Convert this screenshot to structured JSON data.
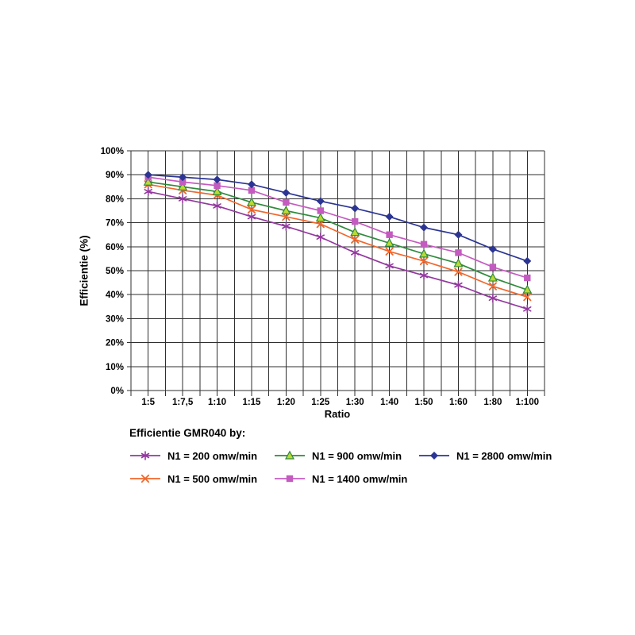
{
  "page": {
    "background": "#ffffff"
  },
  "chart_data": {
    "type": "line",
    "title": "",
    "xlabel": "Ratio",
    "ylabel": "Efficientie (%)",
    "categories": [
      "1:5",
      "1:7,5",
      "1:10",
      "1:15",
      "1:20",
      "1:25",
      "1:30",
      "1:40",
      "1:50",
      "1:60",
      "1:80",
      "1:100"
    ],
    "y_tick_labels": [
      "0%",
      "10%",
      "20%",
      "30%",
      "40%",
      "50%",
      "60%",
      "70%",
      "80%",
      "90%",
      "100%"
    ],
    "ylim": [
      0,
      100
    ],
    "grid": "horizontal lines every 10%; vertical line at every half-category step",
    "legend_title": "Efficientie GMR040 by:",
    "legend_position": "bottom, 3 columns, column-major",
    "legend_columns": [
      [
        0,
        1
      ],
      [
        2,
        3
      ],
      [
        4
      ]
    ],
    "series": [
      {
        "name": "N1 = 200 omw/min",
        "color": "#93399E",
        "marker": "asterisk",
        "values": [
          83,
          80,
          77,
          72.5,
          68.5,
          64,
          57.5,
          52,
          48,
          44,
          38.5,
          34
        ]
      },
      {
        "name": "N1 = 500 omw/min",
        "color": "#F0672C",
        "marker": "x",
        "values": [
          86,
          83.5,
          81.5,
          75.5,
          72.5,
          69.5,
          63,
          58,
          54,
          49.5,
          43.5,
          39
        ]
      },
      {
        "name": "N1 = 900 omw/min",
        "color": "#2F8A3C",
        "marker": "triangle",
        "marker_fill": "#BCD932",
        "values": [
          87,
          85,
          83,
          78.5,
          75,
          72,
          66,
          61.5,
          57,
          53,
          47,
          42
        ]
      },
      {
        "name": "N1 = 1400 omw/min",
        "color": "#C45BC0",
        "marker": "square",
        "values": [
          89,
          87,
          85.5,
          83.5,
          78.5,
          75,
          70.5,
          65,
          61,
          57.5,
          51.5,
          47
        ]
      },
      {
        "name": "N1 = 2800 omw/min",
        "color": "#2C3593",
        "marker": "diamond",
        "values": [
          90,
          89,
          88,
          86,
          82.5,
          79,
          76,
          72.5,
          68,
          65,
          59,
          54
        ]
      }
    ],
    "grid_color": "#2f2f2f"
  }
}
